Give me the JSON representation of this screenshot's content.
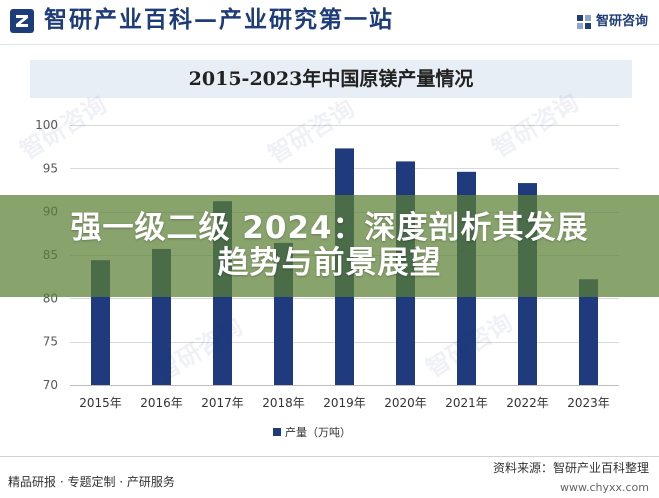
{
  "header": {
    "title": "智研产业百科—产业研究第一站",
    "brand": "智研咨询"
  },
  "watermark": {
    "text": "智研咨询"
  },
  "chart_data": {
    "type": "bar",
    "title": "2015-2023年中国原镁产量情况",
    "categories": [
      "2015年",
      "2016年",
      "2017年",
      "2018年",
      "2019年",
      "2020年",
      "2021年",
      "2022年",
      "2023年"
    ],
    "series": [
      {
        "name": "产量（万吨）",
        "values": [
          84.4,
          85.7,
          91.2,
          86.4,
          97.3,
          95.8,
          94.6,
          93.3,
          82.2
        ]
      }
    ],
    "ylim": [
      70,
      100
    ],
    "yticks": [
      70,
      75,
      80,
      85,
      90,
      95,
      100
    ],
    "grid": true,
    "legend": "bottom"
  },
  "banner": {
    "line1": "强一级二级 2024：深度剖析其发展",
    "line2": "趋势与前景展望"
  },
  "footer": {
    "services": "精品研报 · 专题定制 · 产研服务",
    "source": "资料来源：智研产业百科整理",
    "website": "www.chyxx.com"
  },
  "colors": {
    "brand": "#1e3c7a",
    "bar": "#1f3b7d",
    "title_band": "#e8eef6",
    "banner": "#5c8034"
  }
}
